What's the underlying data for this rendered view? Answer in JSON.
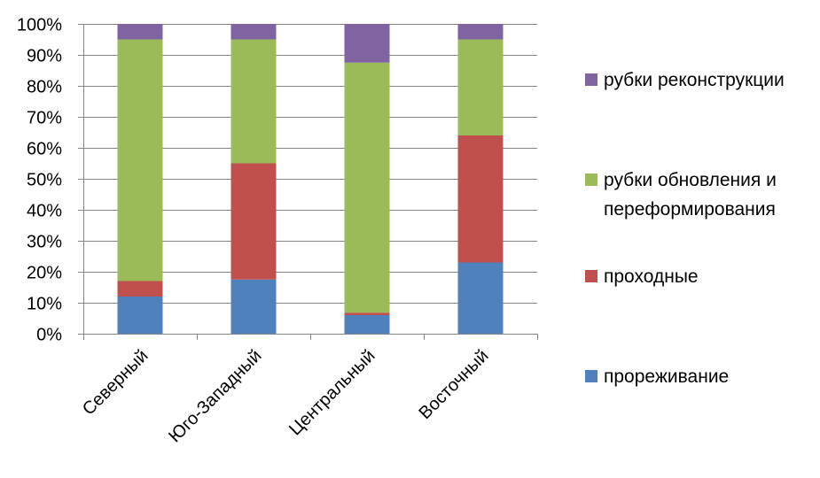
{
  "chart_data": {
    "type": "bar",
    "stacked": "percent",
    "categories": [
      "Северный",
      "Юго-Западный",
      "Центральный",
      "Восточный"
    ],
    "series": [
      {
        "name": "прореживание",
        "color": "#4F81BD",
        "values": [
          12,
          17.5,
          6,
          23
        ]
      },
      {
        "name": "проходные",
        "color": "#C0504D",
        "values": [
          5,
          37.5,
          0.8,
          41
        ]
      },
      {
        "name": "рубки обновления и переформирования",
        "color": "#9BBB59",
        "values": [
          78,
          40,
          80.7,
          31
        ]
      },
      {
        "name": "рубки реконструкции",
        "color": "#8064A2",
        "values": [
          5,
          5,
          12.5,
          5
        ]
      }
    ],
    "ylim": [
      0,
      100
    ],
    "yticks": [
      "0%",
      "10%",
      "20%",
      "30%",
      "40%",
      "50%",
      "60%",
      "70%",
      "80%",
      "90%",
      "100%"
    ],
    "grid": true,
    "legend_position": "right",
    "legend_order": [
      "рубки реконструкции",
      "рубки обновления и переформирования",
      "проходные",
      "прореживание"
    ],
    "legend_lines": {
      "рубки обновления и переформирования": [
        "рубки обновления и",
        "переформирования"
      ]
    },
    "title": "",
    "xlabel": "",
    "ylabel": ""
  }
}
